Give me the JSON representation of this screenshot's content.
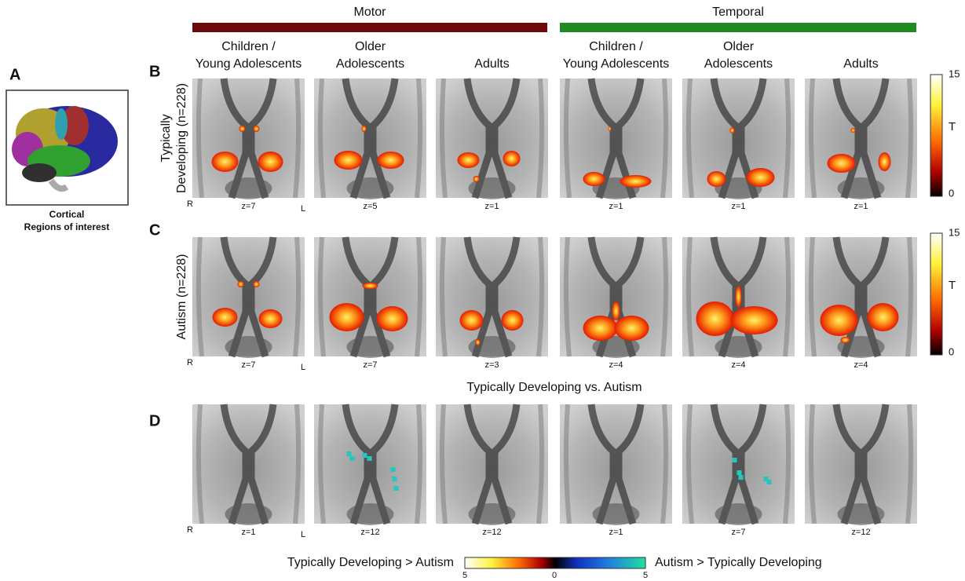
{
  "panel_labels": {
    "a": "A",
    "b": "B",
    "c": "C",
    "d": "D"
  },
  "groups": [
    {
      "label": "Motor",
      "color": "#6b0a0a"
    },
    {
      "label": "Temporal",
      "color": "#1f8a1f"
    }
  ],
  "column_headers": [
    [
      "Children /",
      "Young Adolescents"
    ],
    [
      "Older",
      "Adolescents"
    ],
    [
      "Adults"
    ],
    [
      "Children /",
      "Young Adolescents"
    ],
    [
      "Older",
      "Adolescents"
    ],
    [
      "Adults"
    ]
  ],
  "inset": {
    "caption": [
      "Cortical",
      "Regions of interest"
    ]
  },
  "rows": [
    {
      "label": [
        "Typically",
        "Developing (n=228)"
      ],
      "side": [
        "R",
        "L"
      ],
      "slices": [
        "z=7",
        "z=5",
        "z=1",
        "z=1",
        "z=1",
        "z=1"
      ],
      "colorbar": {
        "max": "15",
        "label": "T",
        "min": "0"
      }
    },
    {
      "label": [
        "Autism (n=228)"
      ],
      "side": [
        "R",
        "L"
      ],
      "slices": [
        "z=7",
        "z=7",
        "z=3",
        "z=4",
        "z=4",
        "z=4"
      ],
      "colorbar": {
        "max": "15",
        "label": "T",
        "min": "0"
      }
    },
    {
      "title": "Typically Developing vs. Autism",
      "side": [
        "R",
        "L"
      ],
      "slices": [
        "z=1",
        "z=12",
        "z=12",
        "z=1",
        "z=7",
        "z=12"
      ]
    }
  ],
  "legend": {
    "left": "Typically Developing > Autism",
    "right": "Autism > Typically Developing",
    "ticks": [
      "5",
      "0",
      "5"
    ]
  }
}
